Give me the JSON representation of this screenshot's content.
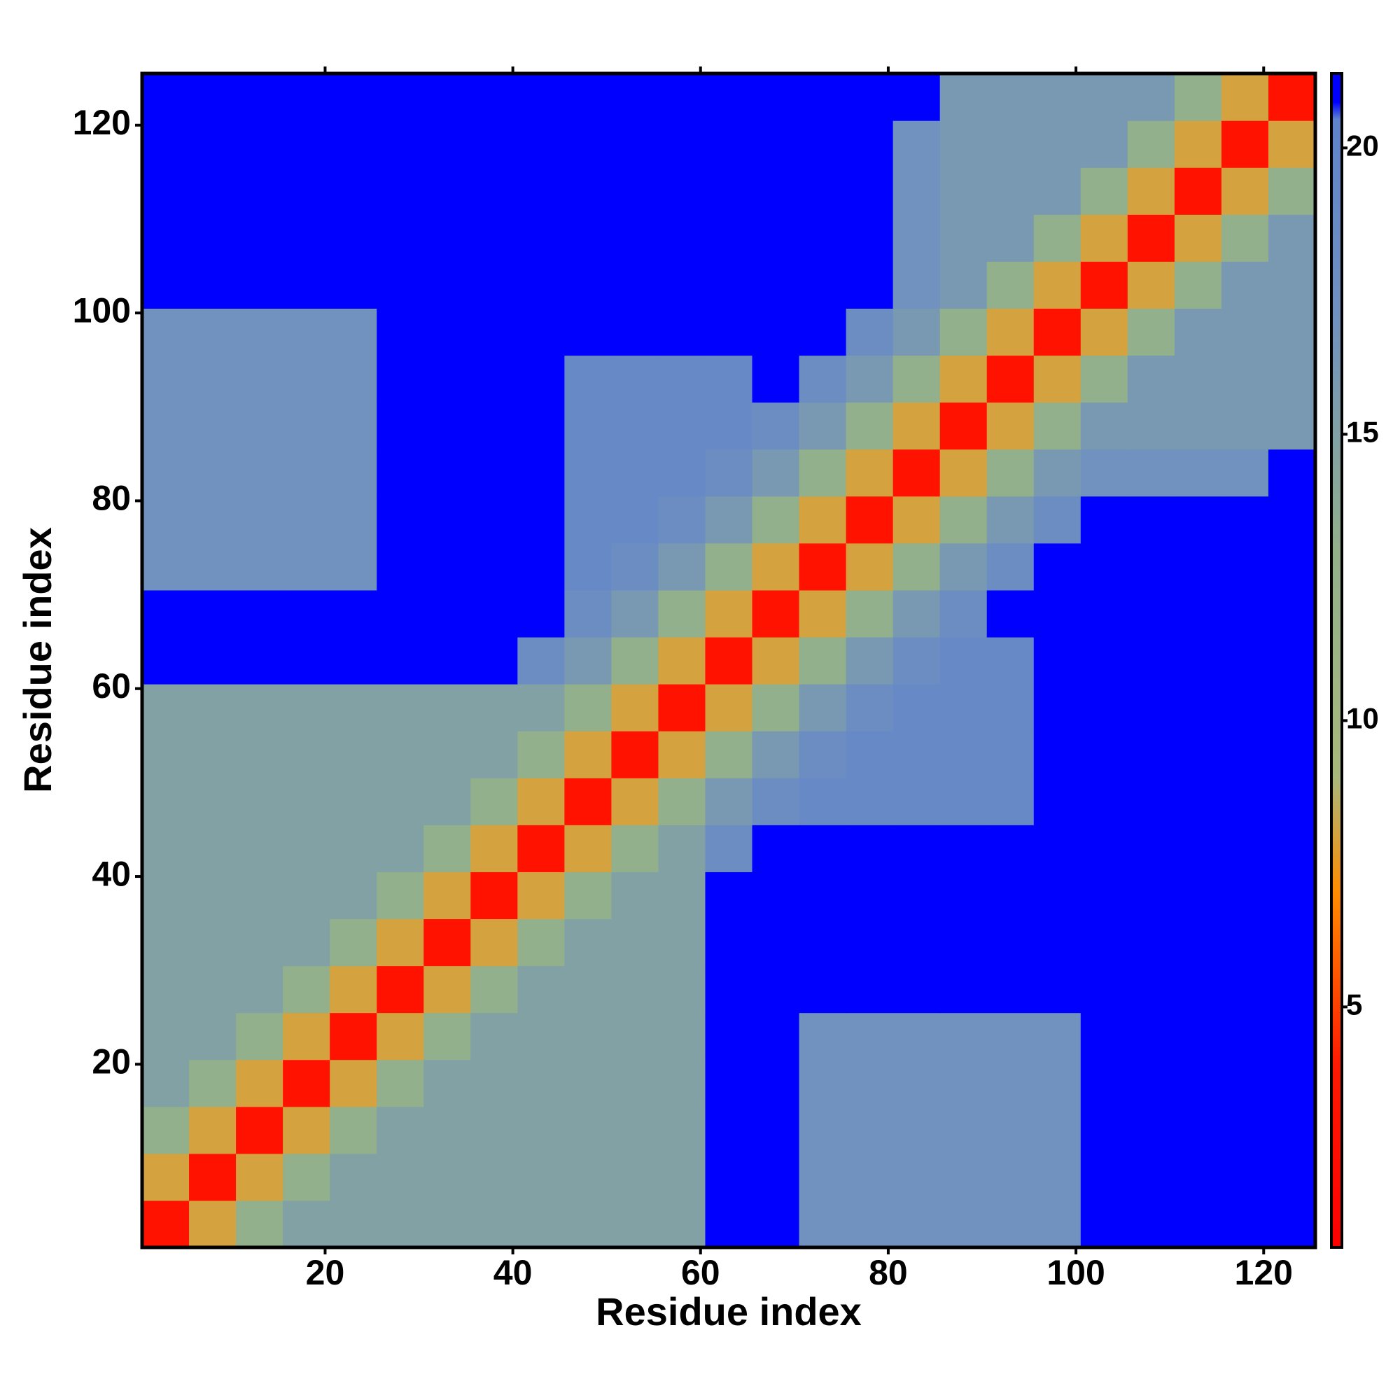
{
  "chart_data": {
    "type": "heatmap",
    "x_label": "Residue index",
    "y_label": "Residue index",
    "x": [
      3,
      8,
      13,
      18,
      23,
      28,
      33,
      38,
      43,
      48,
      53,
      58,
      63,
      68,
      73,
      78,
      83,
      88,
      93,
      98,
      103,
      108,
      113,
      118,
      123
    ],
    "y": [
      3,
      8,
      13,
      18,
      23,
      28,
      33,
      38,
      43,
      48,
      53,
      58,
      63,
      68,
      73,
      78,
      83,
      88,
      93,
      98,
      103,
      108,
      113,
      118,
      123
    ],
    "z": [
      [
        3,
        8,
        13,
        15,
        15,
        15,
        15,
        15,
        15,
        15,
        15,
        15,
        21,
        21,
        17,
        17,
        17,
        17,
        17,
        17,
        21,
        21,
        21,
        21,
        21
      ],
      [
        8,
        3,
        8,
        13,
        15,
        15,
        15,
        15,
        15,
        15,
        15,
        15,
        21,
        21,
        17,
        17,
        17,
        17,
        17,
        17,
        21,
        21,
        21,
        21,
        21
      ],
      [
        13,
        8,
        3,
        8,
        13,
        15,
        15,
        15,
        15,
        15,
        15,
        15,
        21,
        21,
        17,
        17,
        17,
        17,
        17,
        17,
        21,
        21,
        21,
        21,
        21
      ],
      [
        15,
        13,
        8,
        3,
        8,
        13,
        15,
        15,
        15,
        15,
        15,
        15,
        21,
        21,
        17,
        17,
        17,
        17,
        17,
        17,
        21,
        21,
        21,
        21,
        21
      ],
      [
        15,
        15,
        13,
        8,
        3,
        8,
        13,
        15,
        15,
        15,
        15,
        15,
        21,
        21,
        17,
        17,
        17,
        17,
        17,
        17,
        21,
        21,
        21,
        21,
        21
      ],
      [
        15,
        15,
        15,
        13,
        8,
        3,
        8,
        13,
        15,
        15,
        15,
        15,
        21,
        21,
        21,
        21,
        21,
        21,
        21,
        21,
        21,
        21,
        21,
        21,
        21
      ],
      [
        15,
        15,
        15,
        15,
        13,
        8,
        3,
        8,
        13,
        15,
        15,
        15,
        21,
        21,
        21,
        21,
        21,
        21,
        21,
        21,
        21,
        21,
        21,
        21,
        21
      ],
      [
        15,
        15,
        15,
        15,
        15,
        13,
        8,
        3,
        8,
        13,
        15,
        15,
        21,
        21,
        21,
        21,
        21,
        21,
        21,
        21,
        21,
        21,
        21,
        21,
        21
      ],
      [
        15,
        15,
        15,
        15,
        15,
        15,
        13,
        8,
        3,
        8,
        13,
        15,
        18,
        21,
        21,
        21,
        21,
        21,
        21,
        21,
        21,
        21,
        21,
        21,
        21
      ],
      [
        15,
        15,
        15,
        15,
        15,
        15,
        15,
        13,
        8,
        3,
        8,
        13,
        16,
        18,
        19,
        19,
        19,
        19,
        19,
        21,
        21,
        21,
        21,
        21,
        21
      ],
      [
        15,
        15,
        15,
        15,
        15,
        15,
        15,
        15,
        13,
        8,
        3,
        8,
        13,
        16,
        18,
        19,
        19,
        19,
        19,
        21,
        21,
        21,
        21,
        21,
        21
      ],
      [
        15,
        15,
        15,
        15,
        15,
        15,
        15,
        15,
        15,
        13,
        8,
        3,
        8,
        13,
        16,
        18,
        19,
        19,
        19,
        21,
        21,
        21,
        21,
        21,
        21
      ],
      [
        21,
        21,
        21,
        21,
        21,
        21,
        21,
        21,
        18,
        16,
        13,
        8,
        3,
        8,
        13,
        16,
        18,
        19,
        19,
        21,
        21,
        21,
        21,
        21,
        21
      ],
      [
        21,
        21,
        21,
        21,
        21,
        21,
        21,
        21,
        21,
        18,
        16,
        13,
        8,
        3,
        8,
        13,
        16,
        18,
        21,
        21,
        21,
        21,
        21,
        21,
        21
      ],
      [
        17,
        17,
        17,
        17,
        17,
        21,
        21,
        21,
        21,
        19,
        18,
        16,
        13,
        8,
        3,
        8,
        13,
        16,
        18,
        21,
        21,
        21,
        21,
        21,
        21
      ],
      [
        17,
        17,
        17,
        17,
        17,
        21,
        21,
        21,
        21,
        19,
        19,
        18,
        16,
        13,
        8,
        3,
        8,
        13,
        16,
        18,
        21,
        21,
        21,
        21,
        21
      ],
      [
        17,
        17,
        17,
        17,
        17,
        21,
        21,
        21,
        21,
        19,
        19,
        19,
        18,
        16,
        13,
        8,
        3,
        8,
        13,
        16,
        17,
        17,
        17,
        17,
        21
      ],
      [
        17,
        17,
        17,
        17,
        17,
        21,
        21,
        21,
        21,
        19,
        19,
        19,
        19,
        18,
        16,
        13,
        8,
        3,
        8,
        13,
        16,
        16,
        16,
        16,
        16
      ],
      [
        17,
        17,
        17,
        17,
        17,
        21,
        21,
        21,
        21,
        19,
        19,
        19,
        19,
        21,
        18,
        16,
        13,
        8,
        3,
        8,
        13,
        16,
        16,
        16,
        16
      ],
      [
        17,
        17,
        17,
        17,
        17,
        21,
        21,
        21,
        21,
        21,
        21,
        21,
        21,
        21,
        21,
        18,
        16,
        13,
        8,
        3,
        8,
        13,
        16,
        16,
        16
      ],
      [
        21,
        21,
        21,
        21,
        21,
        21,
        21,
        21,
        21,
        21,
        21,
        21,
        21,
        21,
        21,
        21,
        17,
        16,
        13,
        8,
        3,
        8,
        13,
        16,
        16
      ],
      [
        21,
        21,
        21,
        21,
        21,
        21,
        21,
        21,
        21,
        21,
        21,
        21,
        21,
        21,
        21,
        21,
        17,
        16,
        16,
        13,
        8,
        3,
        8,
        13,
        16
      ],
      [
        21,
        21,
        21,
        21,
        21,
        21,
        21,
        21,
        21,
        21,
        21,
        21,
        21,
        21,
        21,
        21,
        17,
        16,
        16,
        16,
        13,
        8,
        3,
        8,
        13
      ],
      [
        21,
        21,
        21,
        21,
        21,
        21,
        21,
        21,
        21,
        21,
        21,
        21,
        21,
        21,
        21,
        21,
        17,
        16,
        16,
        16,
        16,
        13,
        8,
        3,
        8
      ],
      [
        21,
        21,
        21,
        21,
        21,
        21,
        21,
        21,
        21,
        21,
        21,
        21,
        21,
        21,
        21,
        21,
        21,
        16,
        16,
        16,
        16,
        16,
        13,
        8,
        3
      ]
    ],
    "xlim": [
      0.5,
      125.5
    ],
    "ylim": [
      0.5,
      125.5
    ],
    "xticks": [
      20,
      40,
      60,
      80,
      100,
      120
    ],
    "yticks": [
      20,
      40,
      60,
      80,
      100,
      120
    ],
    "zlim": [
      0.8,
      21.3
    ],
    "zticks": [
      5,
      10,
      15,
      20
    ],
    "colorscale": [
      [
        0.8,
        "#ff0000"
      ],
      [
        4,
        "#ff1a00"
      ],
      [
        7,
        "#ff8c00"
      ],
      [
        9,
        "#a9b87c"
      ],
      [
        13,
        "#92b08c"
      ],
      [
        17,
        "#7191be"
      ],
      [
        20.5,
        "#5f83cc"
      ],
      [
        20.8,
        "#0000ff"
      ],
      [
        21.3,
        "#0000ff"
      ]
    ]
  }
}
